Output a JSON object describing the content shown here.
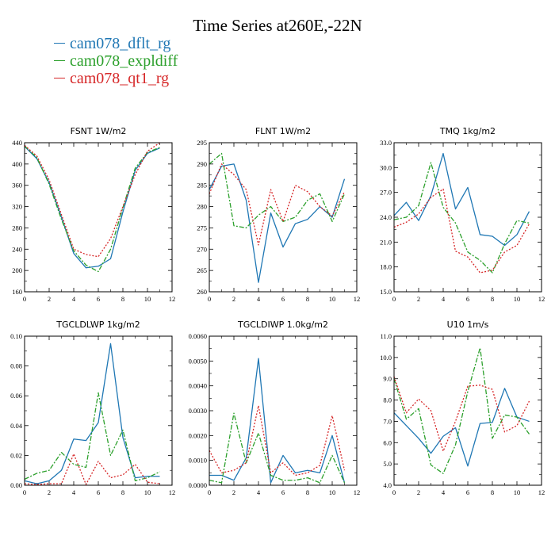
{
  "title": "Time Series at260E,-22N",
  "legend": [
    {
      "name": "cam078_dflt_rg",
      "color": "#1f77b4"
    },
    {
      "name": "cam078_expldiff",
      "color": "#2ca02c"
    },
    {
      "name": "cam078_qt1_rg",
      "color": "#d62728"
    }
  ],
  "chart_data": [
    {
      "type": "line",
      "title": "FSNT   1W/m2",
      "x": [
        0,
        1,
        2,
        3,
        4,
        5,
        6,
        7,
        8,
        9,
        10,
        11
      ],
      "xlim": [
        0,
        12
      ],
      "xticks": [
        0,
        2,
        4,
        6,
        8,
        10,
        12
      ],
      "ylim": [
        160,
        440
      ],
      "yticks": [
        160,
        200,
        240,
        280,
        320,
        360,
        400,
        440
      ],
      "yticklabels": [
        "160",
        "200",
        "240",
        "280",
        "320",
        "360",
        "400",
        "440"
      ],
      "series": [
        {
          "name": "cam078_dflt_rg",
          "values": [
            433,
            410,
            365,
            300,
            232,
            205,
            208,
            222,
            310,
            388,
            420,
            430
          ]
        },
        {
          "name": "cam078_expldiff",
          "values": [
            434,
            412,
            362,
            296,
            237,
            210,
            198,
            240,
            318,
            392,
            422,
            431
          ]
        },
        {
          "name": "cam078_qt1_rg",
          "values": [
            435,
            415,
            370,
            305,
            240,
            230,
            226,
            260,
            320,
            380,
            424,
            440
          ]
        }
      ]
    },
    {
      "type": "line",
      "title": "FLNT   1W/m2",
      "x": [
        0,
        1,
        2,
        3,
        4,
        5,
        6,
        7,
        8,
        9,
        10,
        11
      ],
      "xlim": [
        0,
        12
      ],
      "xticks": [
        0,
        2,
        4,
        6,
        8,
        10,
        12
      ],
      "ylim": [
        260,
        295
      ],
      "yticks": [
        260,
        265,
        270,
        275,
        280,
        285,
        290,
        295
      ],
      "yticklabels": [
        "260",
        "265",
        "270",
        "275",
        "280",
        "285",
        "290",
        "295"
      ],
      "series": [
        {
          "name": "cam078_dflt_rg",
          "values": [
            284,
            289.5,
            290,
            281.5,
            262.2,
            278.5,
            270.5,
            276,
            277,
            280,
            277.5,
            286.5
          ]
        },
        {
          "name": "cam078_expldiff",
          "values": [
            290,
            292.5,
            275.5,
            275,
            278,
            280,
            276.5,
            277.5,
            281.5,
            283,
            276.5,
            283
          ]
        },
        {
          "name": "cam078_qt1_rg",
          "values": [
            283,
            290,
            287.5,
            284,
            271,
            284,
            276.5,
            285,
            283.5,
            280,
            277.8,
            283.5
          ]
        }
      ]
    },
    {
      "type": "line",
      "title": "TMQ   1kg/m2",
      "x": [
        0,
        1,
        2,
        3,
        4,
        5,
        6,
        7,
        8,
        9,
        10,
        11
      ],
      "xlim": [
        0,
        12
      ],
      "xticks": [
        0,
        2,
        4,
        6,
        8,
        10,
        12
      ],
      "ylim": [
        15,
        33
      ],
      "yticks": [
        15,
        18,
        21,
        24,
        27,
        30,
        33
      ],
      "yticklabels": [
        "15.0",
        "18.0",
        "21.0",
        "24.0",
        "27.0",
        "30.0",
        "33.0"
      ],
      "series": [
        {
          "name": "cam078_dflt_rg",
          "values": [
            24.2,
            25.8,
            23.6,
            26.6,
            31.7,
            25.0,
            27.6,
            21.9,
            21.7,
            20.6,
            21.9,
            24.7
          ]
        },
        {
          "name": "cam078_expldiff",
          "values": [
            23.7,
            24.0,
            25.4,
            30.6,
            25.2,
            23.3,
            19.8,
            18.8,
            17.3,
            20.8,
            23.6,
            23.3
          ]
        },
        {
          "name": "cam078_qt1_rg",
          "values": [
            22.8,
            23.4,
            24.4,
            26.4,
            27.4,
            19.9,
            19.2,
            17.3,
            17.6,
            19.8,
            20.6,
            23.2
          ]
        }
      ]
    },
    {
      "type": "line",
      "title": "TGCLDLWP   1kg/m2",
      "x": [
        0,
        1,
        2,
        3,
        4,
        5,
        6,
        7,
        8,
        9,
        10,
        11
      ],
      "xlim": [
        0,
        12
      ],
      "xticks": [
        0,
        2,
        4,
        6,
        8,
        10,
        12
      ],
      "ylim": [
        0,
        0.1
      ],
      "yticks": [
        0,
        0.02,
        0.04,
        0.06,
        0.08,
        0.1
      ],
      "yticklabels": [
        "0.00",
        "0.02",
        "0.04",
        "0.06",
        "0.08",
        "0.10"
      ],
      "series": [
        {
          "name": "cam078_dflt_rg",
          "values": [
            0.003,
            0.001,
            0.003,
            0.01,
            0.031,
            0.03,
            0.042,
            0.095,
            0.032,
            0.005,
            0.006,
            0.006
          ]
        },
        {
          "name": "cam078_expldiff",
          "values": [
            0.004,
            0.008,
            0.01,
            0.022,
            0.014,
            0.012,
            0.062,
            0.02,
            0.037,
            0.003,
            0.005,
            0.009
          ]
        },
        {
          "name": "cam078_qt1_rg",
          "values": [
            0.001,
            0.0005,
            0.001,
            0.001,
            0.021,
            0.0005,
            0.016,
            0.005,
            0.007,
            0.014,
            0.002,
            0.001
          ]
        }
      ]
    },
    {
      "type": "line",
      "title": "TGCLDIWP   1.0kg/m2",
      "x": [
        0,
        1,
        2,
        3,
        4,
        5,
        6,
        7,
        8,
        9,
        10,
        11
      ],
      "xlim": [
        0,
        12
      ],
      "xticks": [
        0,
        2,
        4,
        6,
        8,
        10,
        12
      ],
      "ylim": [
        0,
        0.006
      ],
      "yticks": [
        0,
        0.001,
        0.002,
        0.003,
        0.004,
        0.005,
        0.006
      ],
      "yticklabels": [
        "0.0000",
        "0.0010",
        "0.0020",
        "0.0030",
        "0.0040",
        "0.0050",
        "0.0060"
      ],
      "series": [
        {
          "name": "cam078_dflt_rg",
          "values": [
            0.0004,
            0.0004,
            0.0002,
            0.0011,
            0.0051,
            0.0001,
            0.0012,
            0.0005,
            0.0006,
            0.0005,
            0.002,
            0.0001
          ]
        },
        {
          "name": "cam078_expldiff",
          "values": [
            0.0002,
            0.0001,
            0.0029,
            0.0009,
            0.0021,
            0.0004,
            0.0002,
            0.0002,
            0.0003,
            0.0001,
            0.0012,
            0.0001
          ]
        },
        {
          "name": "cam078_qt1_rg",
          "values": [
            0.0014,
            0.0005,
            0.0006,
            0.0009,
            0.0032,
            0.0005,
            0.0009,
            0.0004,
            0.0005,
            0.0008,
            0.0028,
            0.0006
          ]
        }
      ]
    },
    {
      "type": "line",
      "title": "U10   1m/s",
      "x": [
        0,
        1,
        2,
        3,
        4,
        5,
        6,
        7,
        8,
        9,
        10,
        11
      ],
      "xlim": [
        0,
        12
      ],
      "xticks": [
        0,
        2,
        4,
        6,
        8,
        10,
        12
      ],
      "ylim": [
        4,
        11
      ],
      "yticks": [
        4,
        5,
        6,
        7,
        8,
        9,
        10,
        11
      ],
      "yticklabels": [
        "4.0",
        "5.0",
        "6.0",
        "7.0",
        "8.0",
        "9.0",
        "10.0",
        "11.0"
      ],
      "series": [
        {
          "name": "cam078_dflt_rg",
          "values": [
            7.4,
            6.8,
            6.2,
            5.5,
            6.3,
            6.7,
            4.9,
            6.9,
            6.95,
            8.55,
            7.2,
            7.0
          ]
        },
        {
          "name": "cam078_expldiff",
          "values": [
            9.0,
            7.1,
            7.6,
            4.95,
            4.55,
            5.9,
            8.4,
            10.45,
            6.2,
            7.3,
            7.2,
            6.4
          ]
        },
        {
          "name": "cam078_qt1_rg",
          "values": [
            9.1,
            7.4,
            8.05,
            7.5,
            5.6,
            7.0,
            8.65,
            8.7,
            8.5,
            6.5,
            6.8,
            7.95
          ]
        }
      ]
    }
  ]
}
